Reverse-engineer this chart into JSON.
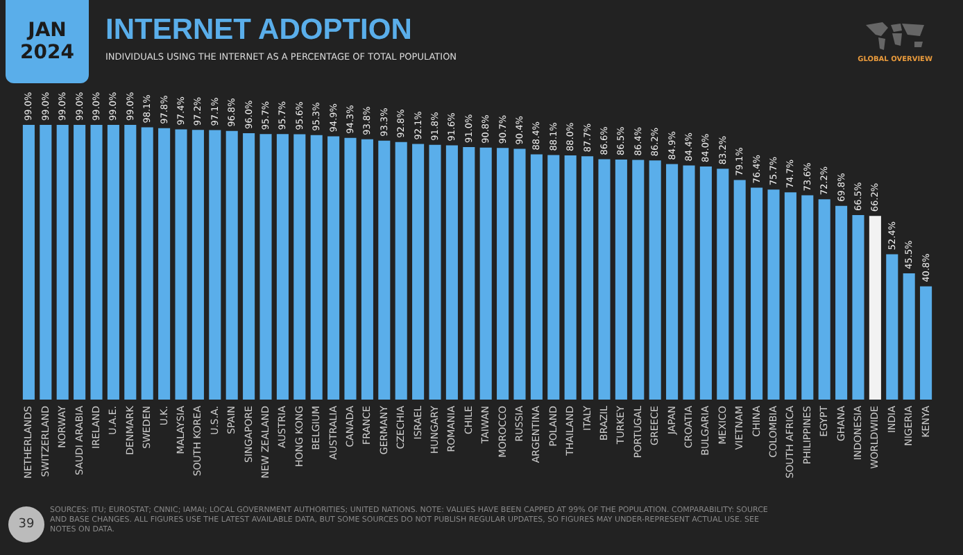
{
  "chart_data": {
    "type": "bar",
    "title": "INTERNET ADOPTION",
    "subtitle": "INDIVIDUALS USING THE INTERNET AS A PERCENTAGE OF TOTAL POPULATION",
    "annotations": [
      "JAN 2024",
      "GLOBAL OVERVIEW",
      "SOURCES: ITU; EUROSTAT; CNNIC; IAMAI; LOCAL GOVERNMENT AUTHORITIES; UNITED NATIONS. NOTE: VALUES HAVE BEEN CAPPED AT 99% OF THE POPULATION. COMPARABILITY: SOURCE AND BASE CHANGES. ALL FIGURES USE THE LATEST AVAILABLE DATA, BUT SOME SOURCES DO NOT PUBLISH REGULAR UPDATES, SO FIGURES MAY UNDER-REPRESENT ACTUAL USE. SEE NOTES ON DATA.",
      "39"
    ],
    "categories": [
      "NETHERLANDS",
      "SWITZERLAND",
      "NORWAY",
      "SAUDI ARABIA",
      "IRELAND",
      "U.A.E.",
      "DENMARK",
      "SWEDEN",
      "U.K.",
      "MALAYSIA",
      "SOUTH KOREA",
      "U.S.A.",
      "SPAIN",
      "SINGAPORE",
      "NEW ZEALAND",
      "AUSTRIA",
      "HONG KONG",
      "BELGIUM",
      "AUSTRALIA",
      "CANADA",
      "FRANCE",
      "GERMANY",
      "CZECHIA",
      "ISRAEL",
      "HUNGARY",
      "ROMANIA",
      "CHILE",
      "TAIWAN",
      "MOROCCO",
      "RUSSIA",
      "ARGENTINA",
      "POLAND",
      "THAILAND",
      "ITALY",
      "BRAZIL",
      "TURKEY",
      "PORTUGAL",
      "GREECE",
      "JAPAN",
      "CROATIA",
      "BULGARIA",
      "MEXICO",
      "VIETNAM",
      "CHINA",
      "COLOMBIA",
      "SOUTH AFRICA",
      "PHILIPPINES",
      "EGYPT",
      "GHANA",
      "INDONESIA",
      "WORLDWIDE",
      "INDIA",
      "NIGERIA",
      "KENYA"
    ],
    "values": [
      99.0,
      99.0,
      99.0,
      99.0,
      99.0,
      99.0,
      99.0,
      98.1,
      97.8,
      97.4,
      97.2,
      97.1,
      96.8,
      96.0,
      95.7,
      95.7,
      95.6,
      95.3,
      94.9,
      94.3,
      93.8,
      93.3,
      92.8,
      92.1,
      91.8,
      91.6,
      91.0,
      90.8,
      90.7,
      90.4,
      88.4,
      88.1,
      88.0,
      87.7,
      86.6,
      86.5,
      86.4,
      86.2,
      84.9,
      84.4,
      84.0,
      83.2,
      79.1,
      76.4,
      75.7,
      74.7,
      73.6,
      72.2,
      69.8,
      66.5,
      66.2,
      52.4,
      45.5,
      40.8
    ],
    "value_labels": [
      "99.0%",
      "99.0%",
      "99.0%",
      "99.0%",
      "99.0%",
      "99.0%",
      "99.0%",
      "98.1%",
      "97.8%",
      "97.4%",
      "97.2%",
      "97.1%",
      "96.8%",
      "96.0%",
      "95.7%",
      "95.7%",
      "95.6%",
      "95.3%",
      "94.9%",
      "94.3%",
      "93.8%",
      "93.3%",
      "92.8%",
      "92.1%",
      "91.8%",
      "91.6%",
      "91.0%",
      "90.8%",
      "90.7%",
      "90.4%",
      "88.4%",
      "88.1%",
      "88.0%",
      "87.7%",
      "86.6%",
      "86.5%",
      "86.4%",
      "86.2%",
      "84.9%",
      "84.4%",
      "84.0%",
      "83.2%",
      "79.1%",
      "76.4%",
      "75.7%",
      "74.7%",
      "73.6%",
      "72.2%",
      "69.8%",
      "66.5%",
      "66.2%",
      "52.4%",
      "45.5%",
      "40.8%"
    ],
    "colors": [
      "#5aaeea",
      "#5aaeea",
      "#5aaeea",
      "#5aaeea",
      "#5aaeea",
      "#5aaeea",
      "#5aaeea",
      "#5aaeea",
      "#5aaeea",
      "#5aaeea",
      "#5aaeea",
      "#5aaeea",
      "#5aaeea",
      "#5aaeea",
      "#5aaeea",
      "#5aaeea",
      "#5aaeea",
      "#5aaeea",
      "#5aaeea",
      "#5aaeea",
      "#5aaeea",
      "#5aaeea",
      "#5aaeea",
      "#5aaeea",
      "#5aaeea",
      "#5aaeea",
      "#5aaeea",
      "#5aaeea",
      "#5aaeea",
      "#5aaeea",
      "#5aaeea",
      "#5aaeea",
      "#5aaeea",
      "#5aaeea",
      "#5aaeea",
      "#5aaeea",
      "#5aaeea",
      "#5aaeea",
      "#5aaeea",
      "#5aaeea",
      "#5aaeea",
      "#5aaeea",
      "#5aaeea",
      "#5aaeea",
      "#5aaeea",
      "#5aaeea",
      "#5aaeea",
      "#5aaeea",
      "#5aaeea",
      "#5aaeea",
      "#f2f2f2",
      "#5aaeea",
      "#5aaeea",
      "#5aaeea"
    ]
  }
}
